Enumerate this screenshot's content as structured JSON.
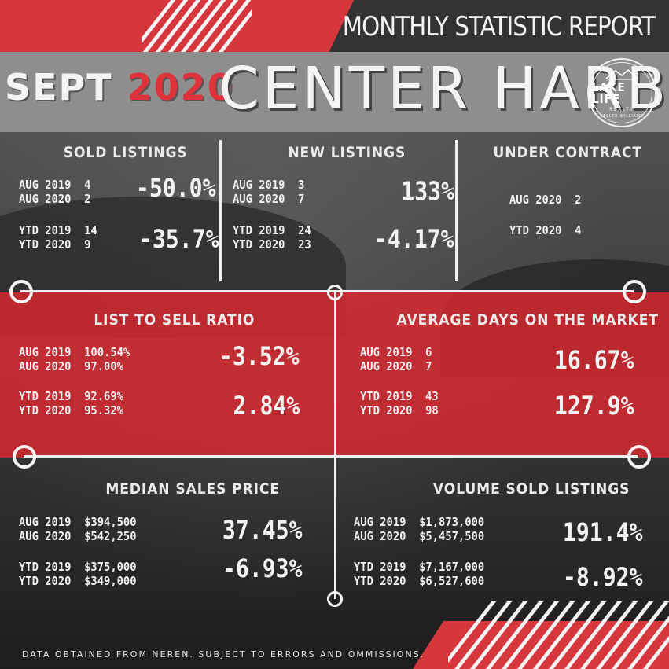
{
  "header": {
    "report_title": "MONTHLY STATISTIC REPORT",
    "month": "SEPT",
    "year": "2020",
    "town": "CENTER HARBOR"
  },
  "logo": {
    "line1": "LAKE LIFE",
    "line2": "REALTY",
    "line3": "KELLER WILLIAMS"
  },
  "sold_listings": {
    "label": "SOLD LISTINGS",
    "rows1": "AUG 2019  4\nAUG 2020  2",
    "pct1": "-50.0%",
    "rows2": "YTD 2019  14\nYTD 2020  9",
    "pct2": "-35.7%"
  },
  "new_listings": {
    "label": "NEW LISTINGS",
    "rows1": "AUG 2019  3\nAUG 2020  7",
    "pct1": "133%",
    "rows2": "YTD 2019  24\nYTD 2020  23",
    "pct2": "-4.17%"
  },
  "under_contract": {
    "label": "UNDER CONTRACT",
    "row1": "AUG 2020  2",
    "row2": "YTD 2020  4"
  },
  "list_to_sell": {
    "label": "LIST TO SELL RATIO",
    "rows1": "AUG 2019  100.54%\nAUG 2020  97.00%",
    "pct1": "-3.52%",
    "rows2": "YTD 2019  92.69%\nYTD 2020  95.32%",
    "pct2": "2.84%"
  },
  "days_on_market": {
    "label": "AVERAGE DAYS ON THE MARKET",
    "rows1": "AUG 2019  6\nAUG 2020  7",
    "pct1": "16.67%",
    "rows2": "YTD 2019  43\nYTD 2020  98",
    "pct2": "127.9%"
  },
  "median_price": {
    "label": "MEDIAN SALES PRICE",
    "rows1": "AUG 2019  $394,500\nAUG 2020  $542,250",
    "pct1": "37.45%",
    "rows2": "YTD 2019  $375,000\nYTD 2020  $349,000",
    "pct2": "-6.93%"
  },
  "volume_sold": {
    "label": "VOLUME SOLD LISTINGS",
    "rows1": "AUG 2019  $1,873,000\nAUG 2020  $5,457,500",
    "pct1": "191.4%",
    "rows2": "YTD 2019  $7,167,000\nYTD 2020  $6,527,600",
    "pct2": "-8.92%"
  },
  "footnote": "DATA OBTAINED FROM NEREN. SUBJECT TO ERRORS AND OMMISSIONS.",
  "colors": {
    "accent_red": "#d6373d",
    "header_grey": "#8e8e8e",
    "text_light": "#f2f2f2"
  }
}
